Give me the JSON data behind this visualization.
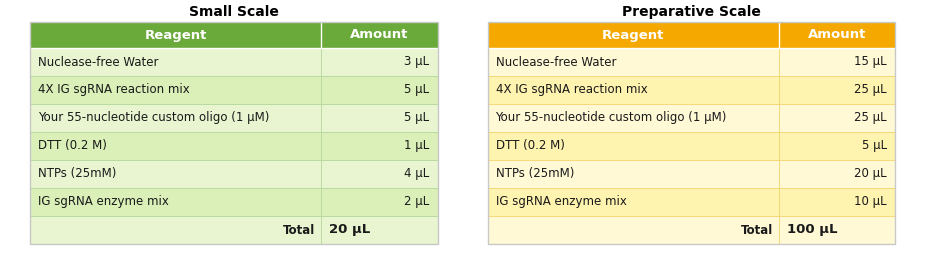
{
  "small_scale_title": "Small Scale",
  "prep_scale_title": "Preparative Scale",
  "header": [
    "Reagent",
    "Amount"
  ],
  "small_rows": [
    [
      "Nuclease-free Water",
      "3 μL"
    ],
    [
      "4X IG sgRNA reaction mix",
      "5 μL"
    ],
    [
      "Your 55-nucleotide custom oligo (1 μM)",
      "5 μL"
    ],
    [
      "DTT (0.2 M)",
      "1 μL"
    ],
    [
      "NTPs (25mM)",
      "4 μL"
    ],
    [
      "IG sgRNA enzyme mix",
      "2 μL"
    ],
    [
      "Total",
      "20 μL"
    ]
  ],
  "prep_rows": [
    [
      "Nuclease-free Water",
      "15 μL"
    ],
    [
      "4X IG sgRNA reaction mix",
      "25 μL"
    ],
    [
      "Your 55-nucleotide custom oligo (1 μM)",
      "25 μL"
    ],
    [
      "DTT (0.2 M)",
      "5 μL"
    ],
    [
      "NTPs (25mM)",
      "20 μL"
    ],
    [
      "IG sgRNA enzyme mix",
      "10 μL"
    ],
    [
      "Total",
      "100 μL"
    ]
  ],
  "small_header_color": "#6aaa3a",
  "small_row_colors": [
    "#e8f5d0",
    "#daf0b8",
    "#e8f5d0",
    "#daf0b8",
    "#e8f5d0",
    "#daf0b8",
    "#e8f5d0"
  ],
  "prep_header_color": "#f5a800",
  "prep_row_colors": [
    "#fff9d6",
    "#fff3b0",
    "#fff9d6",
    "#fff3b0",
    "#fff9d6",
    "#fff3b0",
    "#fff9d6"
  ],
  "header_text_color": "#ffffff",
  "body_text_color": "#1a1a1a",
  "total_label_color": "#1a1a1a",
  "divider_color_small": "#b8dba0",
  "divider_color_prep": "#f5d87a",
  "border_color": "#c8c8c8",
  "title_fontsize": 10,
  "header_fontsize": 9.5,
  "body_fontsize": 8.5
}
